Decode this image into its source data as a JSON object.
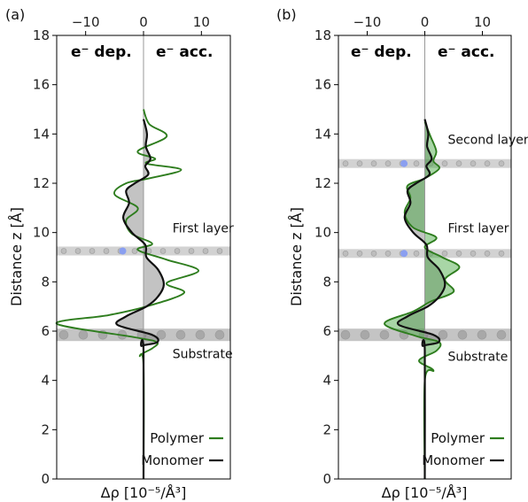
{
  "chart_data": [
    {
      "type": "line",
      "panel_label": "(a)",
      "header_left": "e⁻ dep.",
      "header_right": "e⁻ acc.",
      "xlabel": "Δρ [10⁻⁵/Å³]",
      "ylabel": "Distance z [Å]",
      "xlim": [
        -15,
        15
      ],
      "ylim": [
        0,
        18
      ],
      "x_ticks": [
        -10,
        0,
        10
      ],
      "y_ticks": [
        0,
        2,
        4,
        6,
        8,
        10,
        12,
        14,
        16,
        18
      ],
      "annotations": [
        {
          "text": "First layer",
          "x": 5,
          "y": 10.0
        },
        {
          "text": "Substrate",
          "x": 5,
          "y": 4.9
        }
      ],
      "layers": [
        {
          "z": 5.85,
          "kind": "substrate"
        },
        {
          "z": 9.25,
          "kind": "molecule"
        }
      ],
      "legend": [
        "Polymer",
        "Monomer"
      ],
      "series": [
        {
          "name": "Polymer",
          "color": "#2e7d1e",
          "points": [
            [
              0,
              0
            ],
            [
              0,
              4.6
            ],
            [
              -0.6,
              5.0
            ],
            [
              1.5,
              5.3
            ],
            [
              2.3,
              5.55
            ],
            [
              -1.5,
              5.75
            ],
            [
              -15,
              6.3
            ],
            [
              -6,
              6.65
            ],
            [
              0.5,
              7.0
            ],
            [
              7,
              7.55
            ],
            [
              4,
              7.95
            ],
            [
              9.5,
              8.45
            ],
            [
              4,
              8.9
            ],
            [
              -1,
              9.3
            ],
            [
              1.5,
              9.55
            ],
            [
              -2,
              9.95
            ],
            [
              -3,
              10.5
            ],
            [
              -1,
              11.0
            ],
            [
              -5,
              11.55
            ],
            [
              -3,
              12.0
            ],
            [
              1,
              12.2
            ],
            [
              6.5,
              12.55
            ],
            [
              0.5,
              12.8
            ],
            [
              2,
              13.0
            ],
            [
              -1,
              13.3
            ],
            [
              4,
              13.9
            ],
            [
              1,
              14.4
            ],
            [
              0,
              15.0
            ]
          ]
        },
        {
          "name": "Monomer",
          "color": "#111111",
          "points": [
            [
              0,
              0
            ],
            [
              0,
              5.2
            ],
            [
              -0.3,
              5.4
            ],
            [
              2.4,
              5.55
            ],
            [
              1.5,
              5.85
            ],
            [
              -4.5,
              6.25
            ],
            [
              -3,
              6.6
            ],
            [
              0.5,
              7.0
            ],
            [
              2.5,
              7.4
            ],
            [
              3.5,
              7.9
            ],
            [
              2.5,
              8.5
            ],
            [
              0.5,
              9.0
            ],
            [
              0.3,
              9.5
            ],
            [
              -2,
              10.0
            ],
            [
              -3.5,
              10.6
            ],
            [
              -2.5,
              11.2
            ],
            [
              -3,
              11.7
            ],
            [
              -1.5,
              12.0
            ],
            [
              0.8,
              12.35
            ],
            [
              0.3,
              12.7
            ],
            [
              1.2,
              13.0
            ],
            [
              0.4,
              13.5
            ],
            [
              0.6,
              14.0
            ],
            [
              0,
              14.6
            ]
          ]
        }
      ]
    },
    {
      "type": "line",
      "panel_label": "(b)",
      "header_left": "e⁻ dep.",
      "header_right": "e⁻ acc.",
      "xlabel": "Δρ [10⁻⁵/Å³]",
      "ylabel": "Distance z [Å]",
      "xlim": [
        -15,
        15
      ],
      "ylim": [
        0,
        18
      ],
      "x_ticks": [
        -10,
        0,
        10
      ],
      "y_ticks": [
        0,
        2,
        4,
        6,
        8,
        10,
        12,
        14,
        16,
        18
      ],
      "annotations": [
        {
          "text": "Second layer",
          "x": 4,
          "y": 13.6
        },
        {
          "text": "First layer",
          "x": 4,
          "y": 10.0
        },
        {
          "text": "Substrate",
          "x": 4,
          "y": 4.8
        }
      ],
      "layers": [
        {
          "z": 5.85,
          "kind": "substrate"
        },
        {
          "z": 9.15,
          "kind": "molecule"
        },
        {
          "z": 12.8,
          "kind": "molecule"
        }
      ],
      "legend": [
        "Polymer",
        "Monomer"
      ],
      "series": [
        {
          "name": "Polymer",
          "color": "#2e7d1e",
          "points": [
            [
              0,
              0
            ],
            [
              0,
              4.0
            ],
            [
              1.5,
              4.4
            ],
            [
              -1,
              4.8
            ],
            [
              2,
              5.2
            ],
            [
              2.5,
              5.55
            ],
            [
              -1.5,
              5.8
            ],
            [
              -7,
              6.3
            ],
            [
              -2,
              6.8
            ],
            [
              1,
              7.2
            ],
            [
              5,
              7.6
            ],
            [
              3.5,
              8.1
            ],
            [
              6,
              8.6
            ],
            [
              3,
              9.0
            ],
            [
              0,
              9.4
            ],
            [
              2,
              9.8
            ],
            [
              -2,
              10.2
            ],
            [
              -3.5,
              10.8
            ],
            [
              -2.5,
              11.4
            ],
            [
              -3,
              11.9
            ],
            [
              0,
              12.2
            ],
            [
              2.5,
              12.6
            ],
            [
              1.5,
              12.9
            ],
            [
              2,
              13.3
            ],
            [
              1,
              13.9
            ],
            [
              0,
              14.5
            ]
          ]
        },
        {
          "name": "Monomer",
          "color": "#111111",
          "points": [
            [
              0,
              0
            ],
            [
              0,
              5.2
            ],
            [
              -0.3,
              5.4
            ],
            [
              2.4,
              5.55
            ],
            [
              1.5,
              5.85
            ],
            [
              -4.5,
              6.25
            ],
            [
              -3,
              6.6
            ],
            [
              0.5,
              7.0
            ],
            [
              2.5,
              7.4
            ],
            [
              3.5,
              7.9
            ],
            [
              2.5,
              8.5
            ],
            [
              0.5,
              9.0
            ],
            [
              0.3,
              9.5
            ],
            [
              -2,
              10.0
            ],
            [
              -3.5,
              10.6
            ],
            [
              -2.5,
              11.2
            ],
            [
              -3,
              11.7
            ],
            [
              -1.5,
              12.0
            ],
            [
              0.8,
              12.35
            ],
            [
              0.3,
              12.7
            ],
            [
              1.2,
              13.0
            ],
            [
              0.4,
              13.5
            ],
            [
              0.6,
              14.0
            ],
            [
              0,
              14.6
            ]
          ]
        }
      ]
    }
  ]
}
